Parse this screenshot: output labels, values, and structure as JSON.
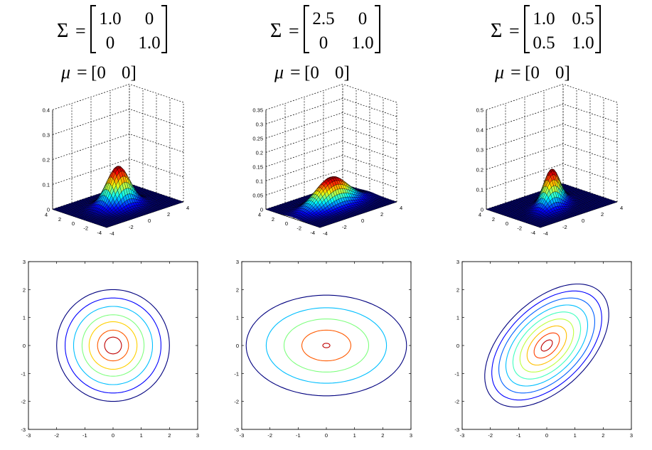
{
  "panels": [
    {
      "sigma": {
        "symbol": "Σ",
        "rows": [
          [
            "1.0",
            "0"
          ],
          [
            "0",
            "1.0"
          ]
        ]
      },
      "mu": {
        "symbol": "μ",
        "values": [
          "0",
          "0"
        ]
      },
      "surface": {
        "sx": 1.0,
        "sy": 1.0,
        "rho": 0.0,
        "zticks": [
          "0",
          "0.1",
          "0.2",
          "0.3",
          "0.4"
        ],
        "zmax": 0.4,
        "xticks": [
          "-4",
          "-2",
          "0",
          "2",
          "4"
        ],
        "yticks": [
          "-4",
          "-2",
          "0",
          "2",
          "4"
        ]
      },
      "contour": {
        "xticks": [
          "-3",
          "-2",
          "-1",
          "0",
          "1",
          "2",
          "3"
        ],
        "yticks": [
          "-3",
          "-2",
          "-1",
          "0",
          "1",
          "2",
          "3"
        ],
        "xlim": [
          -3,
          3
        ],
        "ylim": [
          -3,
          3
        ],
        "levels": [
          2.0,
          1.7,
          1.4,
          1.1,
          0.85,
          0.55,
          0.3
        ],
        "colors": [
          "#00007f",
          "#0000ff",
          "#00bfff",
          "#7fff7f",
          "#ffd000",
          "#ff5a00",
          "#bf0000"
        ]
      }
    },
    {
      "sigma": {
        "symbol": "Σ",
        "rows": [
          [
            "2.5",
            "0"
          ],
          [
            "0",
            "1.0"
          ]
        ]
      },
      "mu": {
        "symbol": "μ",
        "values": [
          "0",
          "0"
        ]
      },
      "surface": {
        "sx": 1.58,
        "sy": 1.0,
        "rho": 0.0,
        "zticks": [
          "0",
          "0.05",
          "0.1",
          "0.15",
          "0.2",
          "0.25",
          "0.3",
          "0.35"
        ],
        "zmax": 0.35,
        "xticks": [
          "-4",
          "-2",
          "0",
          "2",
          "4"
        ],
        "yticks": [
          "-4",
          "-2",
          "0",
          "2",
          "4"
        ]
      },
      "contour": {
        "xticks": [
          "-3",
          "-2",
          "-1",
          "0",
          "1",
          "2",
          "3"
        ],
        "yticks": [
          "-3",
          "-2",
          "-1",
          "0",
          "1",
          "2",
          "3"
        ],
        "xlim": [
          -3,
          3
        ],
        "ylim": [
          -3,
          3
        ],
        "levels": [
          1.8,
          1.35,
          0.95,
          0.55,
          0.08
        ],
        "colors": [
          "#00007f",
          "#00bfff",
          "#7fff7f",
          "#ff5a00",
          "#bf0000"
        ]
      }
    },
    {
      "sigma": {
        "symbol": "Σ",
        "rows": [
          [
            "1.0",
            "0.5"
          ],
          [
            "0.5",
            "1.0"
          ]
        ]
      },
      "mu": {
        "symbol": "μ",
        "values": [
          "0",
          "0"
        ]
      },
      "surface": {
        "sx": 1.0,
        "sy": 1.0,
        "rho": 0.5,
        "zticks": [
          "0",
          "0.1",
          "0.2",
          "0.3",
          "0.4",
          "0.5"
        ],
        "zmax": 0.5,
        "xticks": [
          "-4",
          "-2",
          "0",
          "2",
          "4"
        ],
        "yticks": [
          "-4",
          "-2",
          "0",
          "2",
          "4"
        ]
      },
      "contour": {
        "xticks": [
          "-3",
          "-2",
          "-1",
          "0",
          "1",
          "2",
          "3"
        ],
        "yticks": [
          "-3",
          "-2",
          "-1",
          "0",
          "1",
          "2",
          "3"
        ],
        "xlim": [
          -3,
          3
        ],
        "ylim": [
          -3,
          3
        ],
        "levels": [
          2.2,
          1.95,
          1.7,
          1.45,
          1.2,
          0.95,
          0.7,
          0.45,
          0.2
        ],
        "colors": [
          "#00007f",
          "#0000ff",
          "#0060ff",
          "#00bfff",
          "#40ffbf",
          "#bfff40",
          "#ffbf00",
          "#ff4000",
          "#bf0000"
        ]
      }
    }
  ],
  "chart_data": [
    {
      "type": "surface",
      "title": "",
      "sigma": [
        [
          1.0,
          0
        ],
        [
          0,
          1.0
        ]
      ],
      "mu": [
        0,
        0
      ],
      "xlim": [
        -4,
        4
      ],
      "ylim": [
        -4,
        4
      ],
      "zlim": [
        0,
        0.4
      ],
      "grid": true
    },
    {
      "type": "surface",
      "title": "",
      "sigma": [
        [
          2.5,
          0
        ],
        [
          0,
          1.0
        ]
      ],
      "mu": [
        0,
        0
      ],
      "xlim": [
        -4,
        4
      ],
      "ylim": [
        -4,
        4
      ],
      "zlim": [
        0,
        0.35
      ],
      "grid": true
    },
    {
      "type": "surface",
      "title": "",
      "sigma": [
        [
          1.0,
          0.5
        ],
        [
          0.5,
          1.0
        ]
      ],
      "mu": [
        0,
        0
      ],
      "xlim": [
        -4,
        4
      ],
      "ylim": [
        -4,
        4
      ],
      "zlim": [
        0,
        0.5
      ],
      "grid": true
    },
    {
      "type": "contour",
      "title": "",
      "sigma": [
        [
          1.0,
          0
        ],
        [
          0,
          1.0
        ]
      ],
      "mu": [
        0,
        0
      ],
      "xlim": [
        -3,
        3
      ],
      "ylim": [
        -3,
        3
      ],
      "grid": false
    },
    {
      "type": "contour",
      "title": "",
      "sigma": [
        [
          2.5,
          0
        ],
        [
          0,
          1.0
        ]
      ],
      "mu": [
        0,
        0
      ],
      "xlim": [
        -3,
        3
      ],
      "ylim": [
        -3,
        3
      ],
      "grid": false
    },
    {
      "type": "contour",
      "title": "",
      "sigma": [
        [
          1.0,
          0.5
        ],
        [
          0.5,
          1.0
        ]
      ],
      "mu": [
        0,
        0
      ],
      "xlim": [
        -3,
        3
      ],
      "ylim": [
        -3,
        3
      ],
      "grid": false
    }
  ]
}
